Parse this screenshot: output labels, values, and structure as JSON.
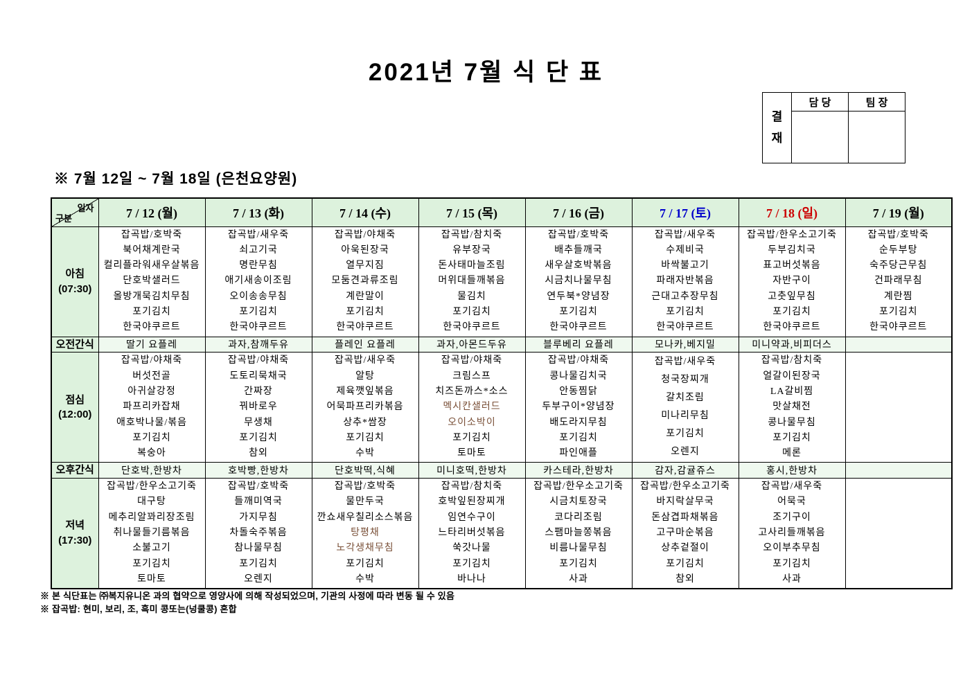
{
  "title": "2021년 7월 식 단 표",
  "approval": {
    "stamp": "결재",
    "columns": [
      "담 당",
      "팀 장"
    ]
  },
  "subtitle": "※ 7월 12일 ~ 7월 18일 (은천요양원)",
  "colors": {
    "header_bg": "#ddf2dd",
    "snack_bg": "#eff9ef",
    "saturday_blue": "#0000cc",
    "sunday_red": "#cc0000",
    "special_item_brown": "#7a5038"
  },
  "table": {
    "corner": {
      "top": "일자",
      "bottom": "구분"
    },
    "columns": [
      {
        "label": "7 / 12 (월)",
        "color": "#000000"
      },
      {
        "label": "7 / 13 (화)",
        "color": "#000000"
      },
      {
        "label": "7 / 14 (수)",
        "color": "#000000"
      },
      {
        "label": "7 / 15 (목)",
        "color": "#000000"
      },
      {
        "label": "7 / 16 (금)",
        "color": "#000000"
      },
      {
        "label": "7 / 17 (토)",
        "color": "#0000cc"
      },
      {
        "label": "7 / 18 (일)",
        "color": "#cc0000"
      },
      {
        "label": "7 / 19 (월)",
        "color": "#000000"
      }
    ],
    "rows": [
      {
        "id": "breakfast",
        "type": "meal",
        "label": "아침",
        "sublabel": "(07:30)",
        "cells": [
          [
            "잡곡밥/호박죽",
            "북어채계란국",
            "컬리플라워새우살볶음",
            "단호박샐러드",
            "올방개묵김치무침",
            "포기김치",
            "한국야쿠르트"
          ],
          [
            "잡곡밥/새우죽",
            "쇠고기국",
            "명란무침",
            "애기새송이조림",
            "오이송송무침",
            "포기김치",
            "한국야쿠르트"
          ],
          [
            "잡곡밥/야채죽",
            "아욱된장국",
            "열무지짐",
            "모둠견과류조림",
            "계란말이",
            "포기김치",
            "한국야쿠르트"
          ],
          [
            "잡곡밥/참치죽",
            "유부장국",
            "돈사태마늘조림",
            "머위대들깨볶음",
            "물김치",
            "포기김치",
            "한국야쿠르트"
          ],
          [
            "잡곡밥/호박죽",
            "배추들깨국",
            "새우살호박볶음",
            "시금치나물무침",
            "연두북*양념장",
            "포기김치",
            "한국야쿠르트"
          ],
          [
            "잡곡밥/새우죽",
            "수제비국",
            "바싹불고기",
            "파래자반볶음",
            "근대고추장무침",
            "포기김치",
            "한국야쿠르트"
          ],
          [
            "잡곡밥/한우소고기죽",
            "두부김치국",
            "표고버섯볶음",
            "자반구이",
            "고춧잎무침",
            "포기김치",
            "한국야쿠르트"
          ],
          [
            "잡곡밥/호박죽",
            "순두부탕",
            "숙주당근무침",
            "건파래무침",
            "계란찜",
            "포기김치",
            "한국야쿠르트"
          ]
        ]
      },
      {
        "id": "am-snack",
        "type": "snack",
        "label": "오전간식",
        "cells": [
          "딸기 요플레",
          "과자,참깨두유",
          "플레인 요플레",
          "과자,아몬드두유",
          "블루베리 요플레",
          "모나카,베지밀",
          "미니약과,비피더스",
          ""
        ]
      },
      {
        "id": "lunch",
        "type": "meal",
        "label": "점심",
        "sublabel": "(12:00)",
        "cells": [
          [
            "잡곡밥/야채죽",
            "버섯전골",
            "아귀살강정",
            "파프리카잡채",
            "애호박나물/볶음",
            "포기김치",
            "복숭아"
          ],
          [
            "잡곡밥/야채죽",
            "도토리묵채국",
            "간짜장",
            "꿔바로우",
            "무생채",
            "포기김치",
            "참외"
          ],
          [
            "잡곡밥/새우죽",
            "알탕",
            "제육깻잎볶음",
            "어묵파프리카볶음",
            "상추*쌈장",
            "포기김치",
            "수박"
          ],
          [
            "잡곡밥/야채죽",
            "크림스프",
            "치즈돈까스*소스",
            {
              "t": "멕시칸샐러드",
              "c": "#7a5038"
            },
            {
              "t": "오이소박이",
              "c": "#7a5038"
            },
            "포기김치",
            "토마토"
          ],
          [
            "잡곡밥/야채죽",
            "콩나물김치국",
            "안동찜닭",
            "두부구이*양념장",
            "배도라지무침",
            "포기김치",
            "파인애플"
          ],
          [
            "잡곡밥/새우죽",
            "청국장찌개",
            "갈치조림",
            "미나리무침",
            "포기김치",
            "오렌지"
          ],
          [
            "잡곡밥/참치죽",
            "얼갈이된장국",
            "LA갈비찜",
            "맛살채전",
            "콩나물무침",
            "포기김치",
            "메론"
          ],
          []
        ]
      },
      {
        "id": "pm-snack",
        "type": "snack",
        "label": "오후간식",
        "cells": [
          "단호박,한방차",
          "호박빵,한방차",
          "단호박떡,식혜",
          "미니호떡,한방차",
          "카스테라,한방차",
          "감자,감귤쥬스",
          "홍시,한방차",
          ""
        ]
      },
      {
        "id": "dinner",
        "type": "meal",
        "label": "저녁",
        "sublabel": "(17:30)",
        "cells": [
          [
            "잡곡밥/한우소고기죽",
            "대구탕",
            "메추리알꽈리장조림",
            "취나물들기름볶음",
            "소불고기",
            "포기김치",
            "토마토"
          ],
          [
            "잡곡밥/호박죽",
            "들깨미역국",
            "가지무침",
            "차돌숙주볶음",
            "참나물무침",
            "포기김치",
            "오렌지"
          ],
          [
            "잡곡밥/호박죽",
            "물만두국",
            "깐쇼새우칠리소스볶음",
            {
              "t": "탕평채",
              "c": "#7a5038"
            },
            {
              "t": "노각생채무침",
              "c": "#7a5038"
            },
            "포기김치",
            "수박"
          ],
          [
            "잡곡밥/참치죽",
            "호박잎된장찌개",
            "임연수구이",
            "느타리버섯볶음",
            "쑥갓나물",
            "포기김치",
            "바나나"
          ],
          [
            "잡곡밥/한우소고기죽",
            "시금치토장국",
            "코다리조림",
            "스팸마늘쫑볶음",
            "비름나물무침",
            "포기김치",
            "사과"
          ],
          [
            "잡곡밥/한우소고기죽",
            "바지락살무국",
            "돈삼겹파채볶음",
            "고구마순볶음",
            "상추겉절이",
            "포기김치",
            "참외"
          ],
          [
            "잡곡밥/새우죽",
            "어묵국",
            "조기구이",
            "고사리들깨볶음",
            "오이부추무침",
            "포기김치",
            "사과"
          ],
          []
        ]
      }
    ]
  },
  "footnotes": [
    "※ 본 식단표는 ㈜복지유니온 과의 협약으로 영양사에 의해 작성되었으며, 기관의 사정에 따라 변동 될 수 있음",
    "※ 잡곡밥: 현미, 보리, 조, 흑미 콩또는(넝쿨콩) 혼합"
  ]
}
